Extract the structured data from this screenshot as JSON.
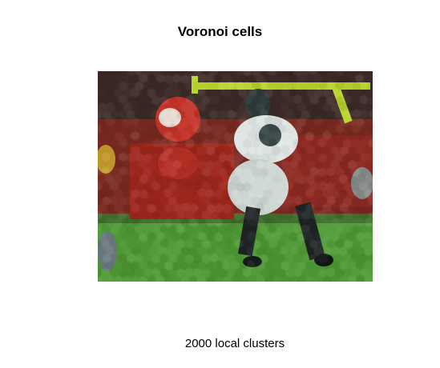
{
  "figure": {
    "title": "Voronoi cells",
    "caption": "2000 local clusters",
    "image_description_label": "voronoi-cell-segmented-photo"
  },
  "colors": {
    "background": "#ffffff",
    "text": "#000000",
    "field_green": "#4f9a35",
    "crowd_red": "#9a241b",
    "goalpost_yellow": "#b9d42a",
    "uniform_white": "#dfe6e3",
    "jersey_dark": "#2e3a3a"
  }
}
